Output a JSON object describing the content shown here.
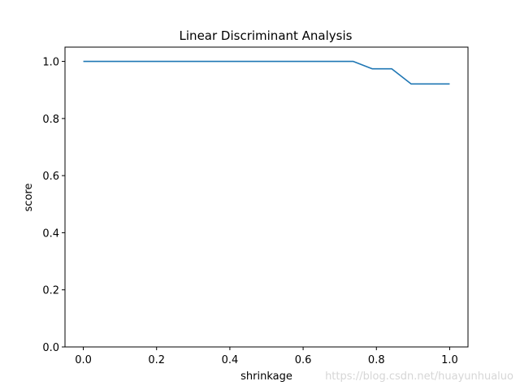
{
  "chart_data": {
    "type": "line",
    "title": "Linear Discriminant Analysis",
    "xlabel": "shrinkage",
    "ylabel": "score",
    "xlim": [
      -0.05,
      1.05
    ],
    "ylim": [
      0.0,
      1.05
    ],
    "x_ticks": [
      "0.0",
      "0.2",
      "0.4",
      "0.6",
      "0.8",
      "1.0"
    ],
    "y_ticks": [
      "0.0",
      "0.2",
      "0.4",
      "0.6",
      "0.8",
      "1.0"
    ],
    "grid": false,
    "series": [
      {
        "color": "#1f77b4",
        "x": [
          0.0,
          0.737,
          0.789,
          0.842,
          0.895,
          1.0
        ],
        "y": [
          1.0,
          1.0,
          0.974,
          0.974,
          0.921,
          0.921
        ]
      }
    ]
  },
  "watermark": "https://blog.csdn.net/huayunhualuo"
}
